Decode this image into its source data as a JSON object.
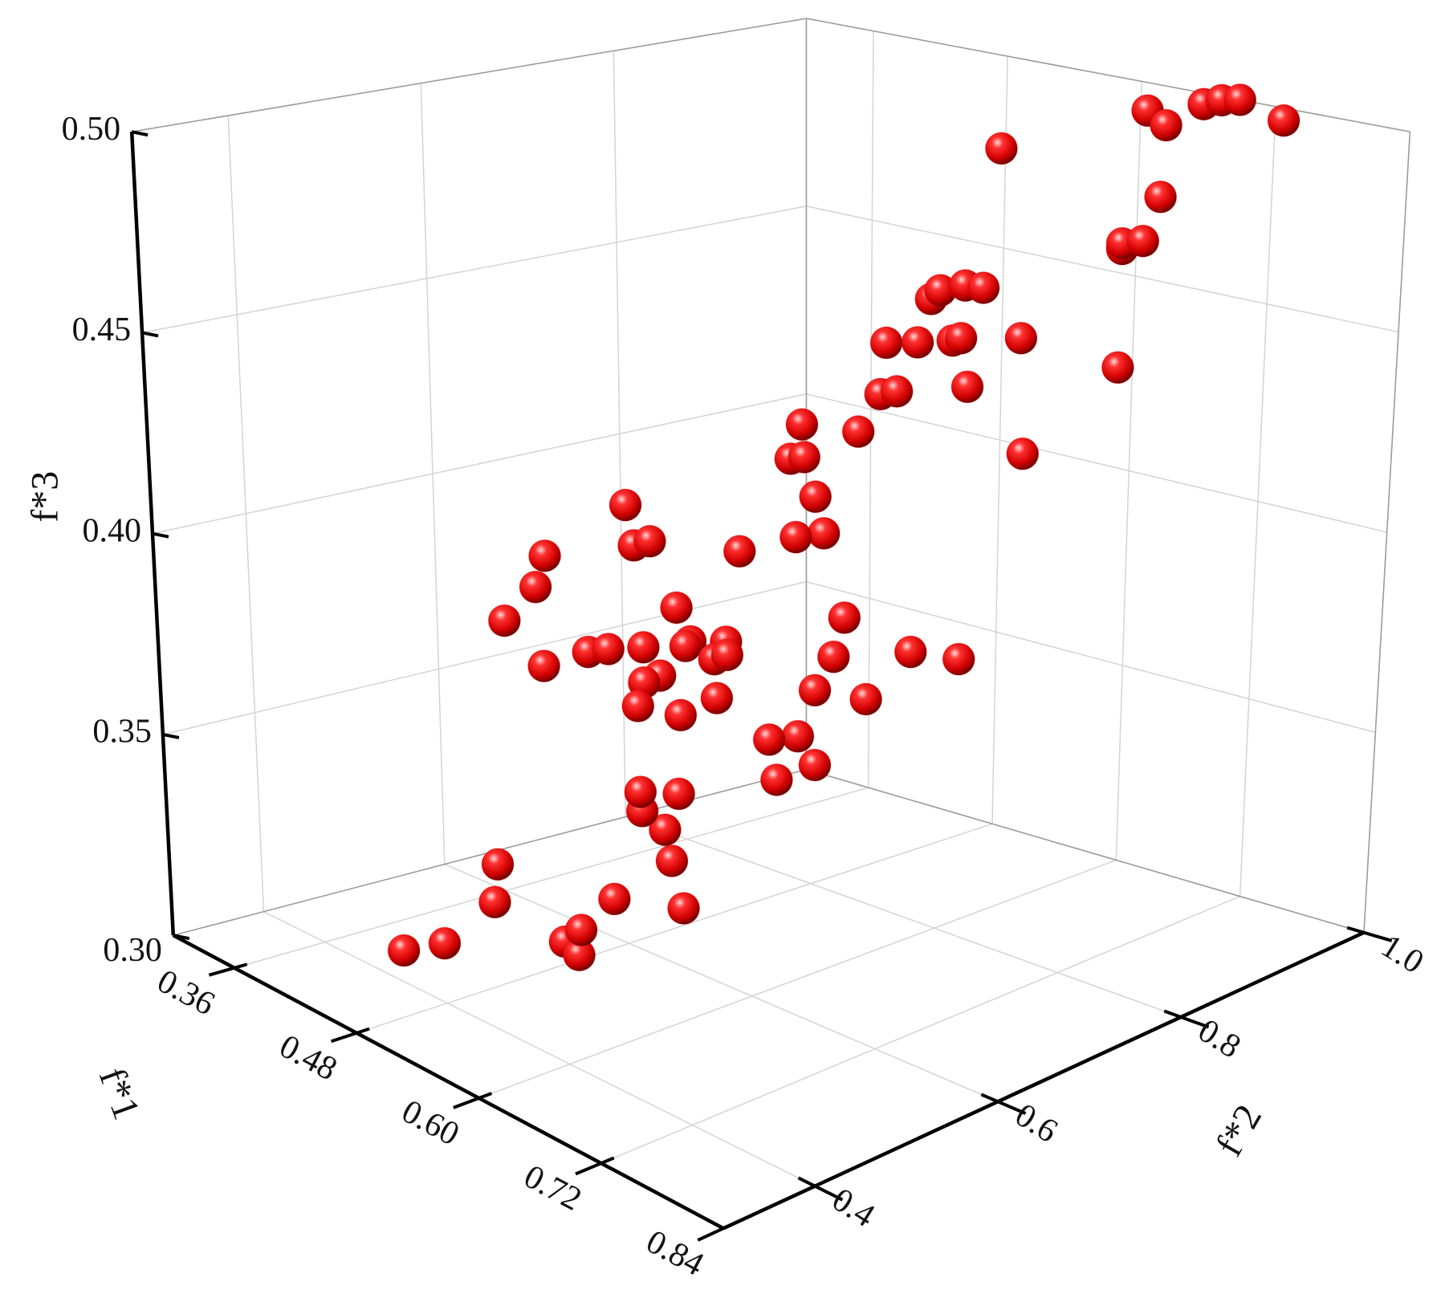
{
  "chart_data": {
    "type": "scatter3d",
    "xlabel": "f*1",
    "ylabel": "f*2",
    "zlabel": "f*3",
    "color": "#e00000",
    "grid": true,
    "xlim": [
      0.3,
      0.84
    ],
    "ylim": [
      0.3,
      1.0
    ],
    "zlim": [
      0.3,
      0.5
    ],
    "xticks": [
      0.36,
      0.48,
      {
        "value": 0.6,
        "label": "0.60"
      },
      0.72,
      0.84
    ],
    "yticks": [
      0.4,
      0.6,
      0.8,
      {
        "value": 1.0,
        "label": "1.0"
      }
    ],
    "zticks": [
      {
        "value": 0.3,
        "label": "0.30"
      },
      0.35,
      {
        "value": 0.4,
        "label": "0.40"
      },
      0.45,
      {
        "value": 0.5,
        "label": "0.50"
      }
    ],
    "x": [
      0.42,
      0.437,
      0.504,
      0.516,
      0.528,
      0.479,
      0.486,
      0.524,
      0.544,
      0.554,
      0.566,
      0.554,
      0.562,
      0.581,
      0.546,
      0.542,
      0.552,
      0.544,
      0.589,
      0.552,
      0.572,
      0.6,
      0.634,
      0.58,
      0.567,
      0.561,
      0.571,
      0.566,
      0.569,
      0.584,
      0.622,
      0.64,
      0.642,
      0.665,
      0.662,
      0.624,
      0.637,
      0.649,
      0.648,
      0.675,
      0.639,
      0.625,
      0.626,
      0.639,
      0.697,
      0.705,
      0.693,
      0.697,
      0.696,
      0.607,
      0.675,
      0.68,
      0.683,
      0.681,
      0.688,
      0.758,
      0.576,
      0.575,
      0.575,
      0.56,
      0.555,
      0.532,
      0.505,
      0.525,
      0.522,
      0.526,
      0.538,
      0.556,
      0.549,
      0.554,
      0.565,
      0.561,
      0.56,
      0.537,
      0.528,
      0.523,
      0.53,
      0.545
    ],
    "y": [
      0.42,
      0.446,
      0.503,
      0.505,
      0.494,
      0.455,
      0.451,
      0.535,
      0.588,
      0.564,
      0.543,
      0.532,
      0.521,
      0.541,
      0.687,
      0.733,
      0.703,
      0.681,
      0.734,
      0.721,
      0.718,
      0.769,
      0.782,
      0.72,
      0.712,
      0.689,
      0.698,
      0.677,
      0.688,
      0.668,
      0.684,
      0.686,
      0.701,
      0.749,
      0.813,
      0.71,
      0.728,
      0.751,
      0.761,
      0.793,
      0.739,
      0.765,
      0.79,
      0.794,
      0.871,
      0.862,
      0.876,
      0.893,
      0.911,
      0.847,
      0.919,
      0.933,
      0.968,
      0.989,
      1.0,
      0.964,
      0.49,
      0.5,
      0.517,
      0.63,
      0.428,
      0.444,
      0.441,
      0.46,
      0.511,
      0.528,
      0.552,
      0.567,
      0.59,
      0.579,
      0.61,
      0.602,
      0.617,
      0.571,
      0.564,
      0.563,
      0.601,
      0.623
    ],
    "z": [
      0.304,
      0.306,
      0.31,
      0.308,
      0.316,
      0.32,
      0.33,
      0.32,
      0.316,
      0.33,
      0.34,
      0.344,
      0.35,
      0.35,
      0.34,
      0.34,
      0.35,
      0.35,
      0.36,
      0.36,
      0.37,
      0.37,
      0.37,
      0.38,
      0.4,
      0.4,
      0.41,
      0.42,
      0.42,
      0.43,
      0.43,
      0.44,
      0.44,
      0.44,
      0.42,
      0.45,
      0.45,
      0.45,
      0.45,
      0.45,
      0.46,
      0.46,
      0.46,
      0.46,
      0.44,
      0.47,
      0.47,
      0.47,
      0.48,
      0.49,
      0.5,
      0.496,
      0.5,
      0.5,
      0.5,
      0.5,
      0.42,
      0.41,
      0.41,
      0.4,
      0.41,
      0.4,
      0.39,
      0.38,
      0.38,
      0.38,
      0.38,
      0.39,
      0.38,
      0.38,
      0.38,
      0.376,
      0.376,
      0.372,
      0.37,
      0.364,
      0.36,
      0.364
    ]
  }
}
